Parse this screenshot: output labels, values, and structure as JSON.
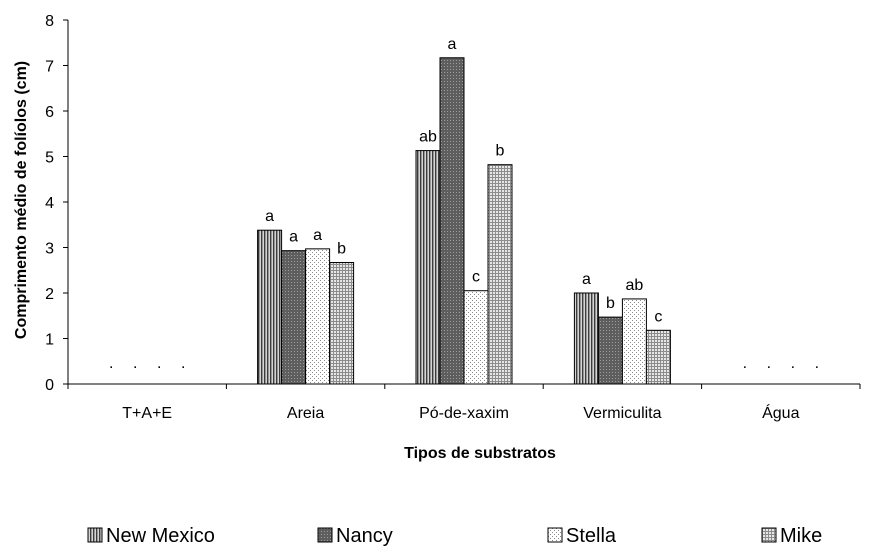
{
  "chart_data": {
    "type": "bar",
    "title": "",
    "xlabel": "Tipos de substratos",
    "ylabel": "Comprimento médio de folíolos (cm)",
    "ylim": [
      0,
      8
    ],
    "yticks": [
      "0",
      "1",
      "2",
      "3",
      "4",
      "5",
      "6",
      "7",
      "8"
    ],
    "grid": false,
    "legend_position": "bottom",
    "categories": [
      "T+A+E",
      "Areia",
      "Pó-de-xaxim",
      "Vermiculita",
      "Água"
    ],
    "series": [
      {
        "name": "New Mexico",
        "values": [
          0,
          3.38,
          5.13,
          2.0,
          0
        ],
        "labels": [
          ".",
          "a",
          "ab",
          "a",
          "."
        ],
        "color": "#9a9a9a",
        "pattern": "vlines"
      },
      {
        "name": "Nancy",
        "values": [
          0,
          2.93,
          7.17,
          1.47,
          0
        ],
        "labels": [
          ".",
          "a",
          "a",
          "b",
          "."
        ],
        "color": "#6f6f6f",
        "pattern": "dark"
      },
      {
        "name": "Stella",
        "values": [
          0,
          2.97,
          2.05,
          1.87,
          0
        ],
        "labels": [
          ".",
          "a",
          "c",
          "ab",
          "."
        ],
        "color": "#ffffff",
        "pattern": "dots"
      },
      {
        "name": "Mike",
        "values": [
          0,
          2.67,
          4.82,
          1.18,
          0
        ],
        "labels": [
          ".",
          "b",
          "b",
          "c",
          "."
        ],
        "color": "#bdbdbd",
        "pattern": "grid"
      }
    ]
  }
}
